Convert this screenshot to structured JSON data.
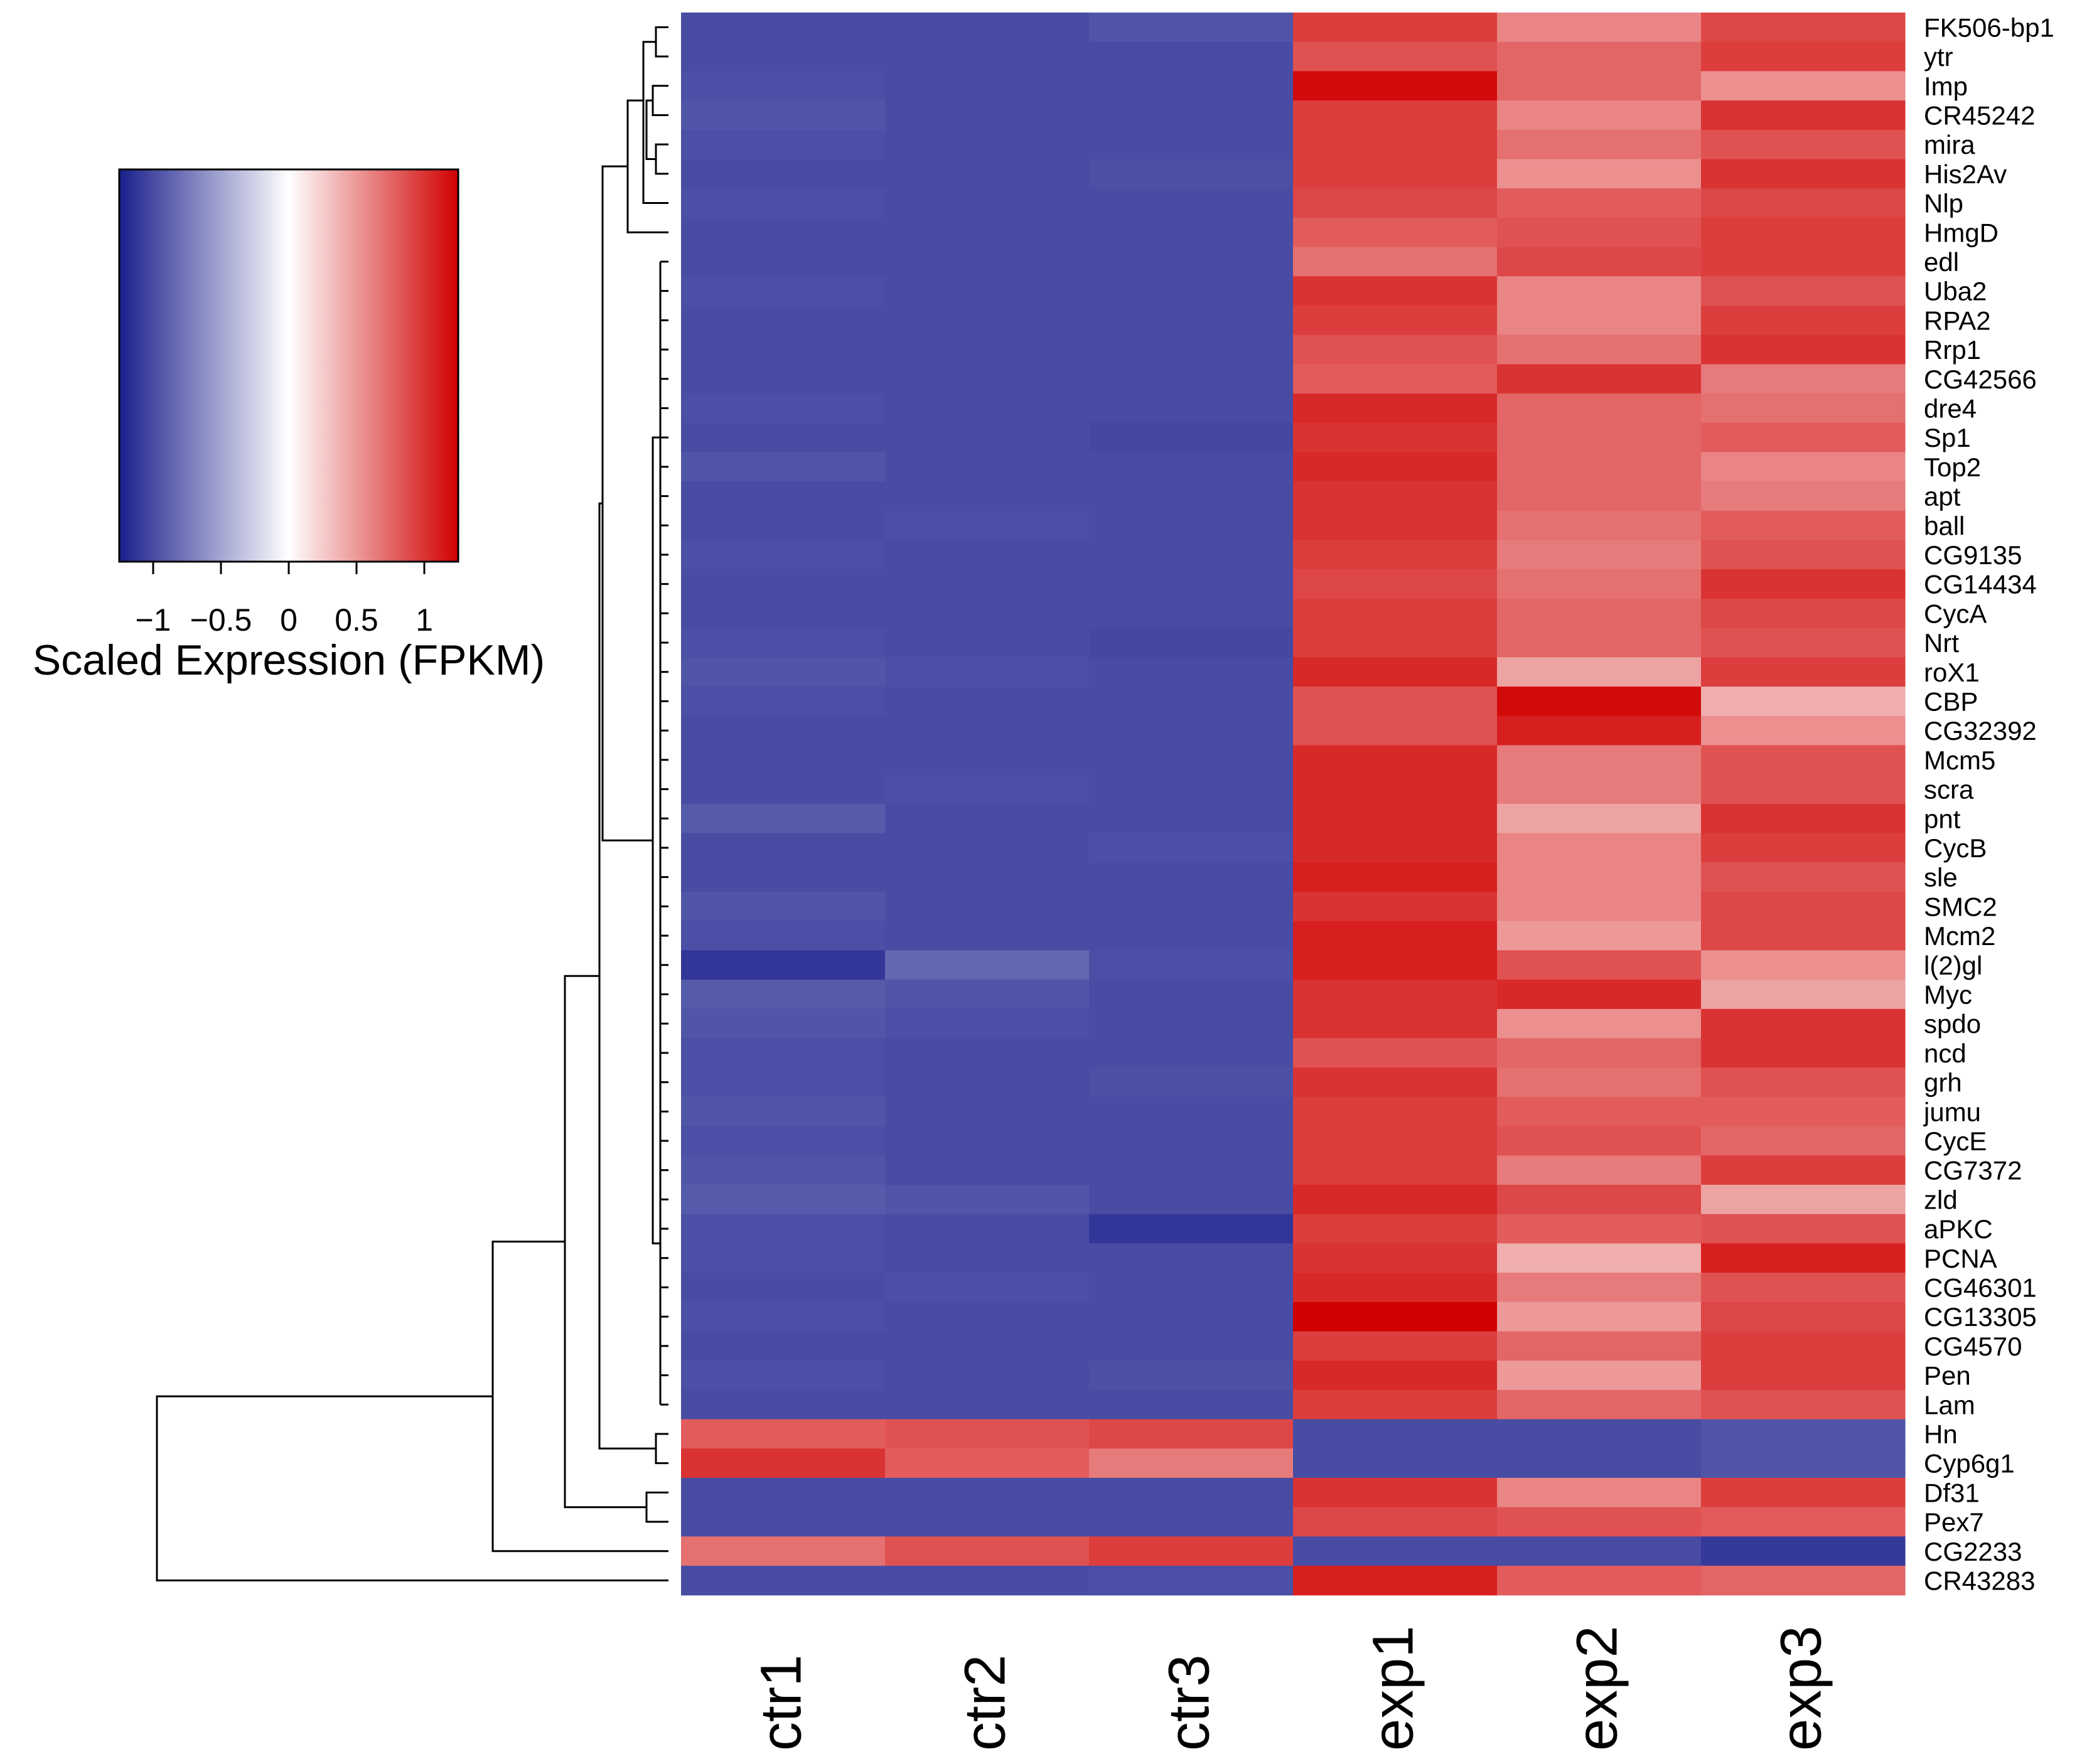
{
  "chart_data": {
    "type": "heatmap",
    "title": "",
    "columns": [
      "ctr1",
      "ctr2",
      "ctr3",
      "exp1",
      "exp2",
      "exp3"
    ],
    "rows": [
      "FK506-bp1",
      "ytr",
      "Imp",
      "CR45242",
      "mira",
      "His2Av",
      "Nlp",
      "HmgD",
      "edl",
      "Uba2",
      "RPA2",
      "Rrp1",
      "CG42566",
      "dre4",
      "Sp1",
      "Top2",
      "apt",
      "ball",
      "CG9135",
      "CG14434",
      "CycA",
      "Nrt",
      "roX1",
      "CBP",
      "CG32392",
      "Mcm5",
      "scra",
      "pnt",
      "CycB",
      "sle",
      "SMC2",
      "Mcm2",
      "l(2)gl",
      "Myc",
      "spdo",
      "ncd",
      "grh",
      "jumu",
      "CycE",
      "CG7372",
      "zld",
      "aPKC",
      "PCNA",
      "CG46301",
      "CG13305",
      "CG4570",
      "Pen",
      "Lam",
      "Hn",
      "Cyp6g1",
      "Df31",
      "Pex7",
      "CG2233",
      "CR43283"
    ],
    "values": [
      [
        -1.0,
        -1.0,
        -0.95,
        0.95,
        0.6,
        0.9
      ],
      [
        -1.0,
        -1.0,
        -1.0,
        0.85,
        0.75,
        0.95
      ],
      [
        -0.98,
        -1.0,
        -1.0,
        1.2,
        0.75,
        0.55
      ],
      [
        -0.95,
        -1.0,
        -1.0,
        0.95,
        0.6,
        1.0
      ],
      [
        -0.98,
        -1.0,
        -1.0,
        0.95,
        0.7,
        0.85
      ],
      [
        -1.0,
        -1.0,
        -0.97,
        0.95,
        0.55,
        1.0
      ],
      [
        -0.98,
        -1.0,
        -1.0,
        0.9,
        0.8,
        0.9
      ],
      [
        -1.0,
        -1.0,
        -1.0,
        0.8,
        0.85,
        0.95
      ],
      [
        -1.0,
        -1.0,
        -1.0,
        0.7,
        0.9,
        0.95
      ],
      [
        -0.98,
        -1.0,
        -1.0,
        1.0,
        0.6,
        0.85
      ],
      [
        -1.0,
        -1.0,
        -1.0,
        0.95,
        0.6,
        0.95
      ],
      [
        -1.0,
        -1.0,
        -1.0,
        0.85,
        0.7,
        1.0
      ],
      [
        -1.0,
        -1.0,
        -1.0,
        0.8,
        1.0,
        0.65
      ],
      [
        -0.98,
        -1.0,
        -1.0,
        1.05,
        0.75,
        0.7
      ],
      [
        -1.0,
        -1.0,
        -1.02,
        1.0,
        0.75,
        0.8
      ],
      [
        -0.95,
        -1.0,
        -1.0,
        1.05,
        0.75,
        0.6
      ],
      [
        -1.0,
        -1.0,
        -1.0,
        1.0,
        0.75,
        0.65
      ],
      [
        -1.0,
        -0.98,
        -1.0,
        1.0,
        0.7,
        0.8
      ],
      [
        -0.98,
        -1.0,
        -1.0,
        0.95,
        0.65,
        0.85
      ],
      [
        -1.0,
        -1.0,
        -1.0,
        0.9,
        0.7,
        1.0
      ],
      [
        -1.0,
        -1.0,
        -1.0,
        0.95,
        0.75,
        0.9
      ],
      [
        -0.98,
        -1.0,
        -1.02,
        0.95,
        0.75,
        0.85
      ],
      [
        -0.95,
        -0.98,
        -1.0,
        1.05,
        0.45,
        0.95
      ],
      [
        -0.98,
        -1.0,
        -1.0,
        0.85,
        1.2,
        0.4
      ],
      [
        -1.0,
        -1.0,
        -1.0,
        0.85,
        1.1,
        0.55
      ],
      [
        -1.0,
        -1.0,
        -1.0,
        1.05,
        0.65,
        0.85
      ],
      [
        -1.0,
        -0.98,
        -1.0,
        1.05,
        0.65,
        0.85
      ],
      [
        -0.92,
        -1.0,
        -1.0,
        1.05,
        0.45,
        1.0
      ],
      [
        -1.0,
        -1.0,
        -0.98,
        1.05,
        0.6,
        0.95
      ],
      [
        -1.0,
        -1.0,
        -1.0,
        1.1,
        0.6,
        0.85
      ],
      [
        -0.95,
        -1.0,
        -1.0,
        1.0,
        0.6,
        0.9
      ],
      [
        -0.98,
        -1.0,
        -1.0,
        1.1,
        0.5,
        0.9
      ],
      [
        -1.12,
        -0.85,
        -0.98,
        1.1,
        0.85,
        0.55
      ],
      [
        -0.92,
        -0.95,
        -1.0,
        1.0,
        1.05,
        0.45
      ],
      [
        -0.95,
        -0.98,
        -1.0,
        1.0,
        0.55,
        1.0
      ],
      [
        -0.98,
        -1.0,
        -1.0,
        0.85,
        0.75,
        1.0
      ],
      [
        -0.98,
        -1.0,
        -0.97,
        1.0,
        0.7,
        0.85
      ],
      [
        -0.95,
        -1.0,
        -1.0,
        0.95,
        0.8,
        0.8
      ],
      [
        -0.98,
        -1.0,
        -1.0,
        0.95,
        0.85,
        0.75
      ],
      [
        -0.95,
        -1.0,
        -1.0,
        0.95,
        0.65,
        0.95
      ],
      [
        -0.92,
        -0.95,
        -1.0,
        1.05,
        0.9,
        0.45
      ],
      [
        -0.98,
        -1.0,
        -1.12,
        0.95,
        0.8,
        0.85
      ],
      [
        -0.98,
        -1.0,
        -1.0,
        1.0,
        0.4,
        1.1
      ],
      [
        -1.0,
        -0.98,
        -1.0,
        1.05,
        0.65,
        0.85
      ],
      [
        -0.98,
        -1.0,
        -1.0,
        1.25,
        0.5,
        0.9
      ],
      [
        -1.0,
        -1.0,
        -1.0,
        0.95,
        0.75,
        0.95
      ],
      [
        -0.98,
        -1.0,
        -0.97,
        1.05,
        0.5,
        0.95
      ],
      [
        -1.0,
        -1.0,
        -1.0,
        0.95,
        0.75,
        0.85
      ],
      [
        0.8,
        0.85,
        0.9,
        -1.0,
        -1.0,
        -0.95
      ],
      [
        1.0,
        0.8,
        0.65,
        -1.0,
        -1.0,
        -0.95
      ],
      [
        -1.0,
        -1.0,
        -1.0,
        1.0,
        0.6,
        0.95
      ],
      [
        -1.0,
        -1.0,
        -1.0,
        0.9,
        0.85,
        0.8
      ],
      [
        0.7,
        0.85,
        0.95,
        -1.0,
        -1.0,
        -1.1
      ],
      [
        -1.0,
        -1.0,
        -0.98,
        1.1,
        0.8,
        0.75
      ]
    ],
    "color_scale": {
      "min": -1.25,
      "max": 1.25,
      "low_color": "#1a1f8c",
      "mid_color": "#ffffff",
      "high_color": "#d10000",
      "label": "Scaled Expression (FPKM)",
      "ticks": [
        -1,
        -0.5,
        0,
        0.5,
        1
      ],
      "tick_labels": [
        "−1",
        "−0.5",
        "0",
        "0.5",
        "1"
      ]
    },
    "row_dendrogram": true
  }
}
